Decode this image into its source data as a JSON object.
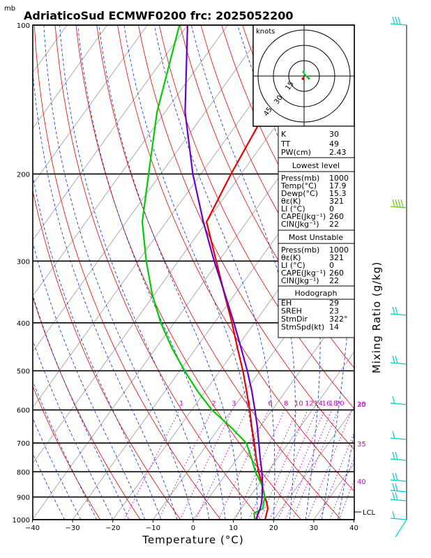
{
  "title": "AdriaticoSud ECMWF0200 frc: 2025052200",
  "p_unit": "mb",
  "colors": {
    "temperature": "#e60000",
    "dewpoint": "#00cc00",
    "virtual_temp": "#6a00cc",
    "dry_adiabats": "#e60000",
    "moist_adiabats": "#0033cc",
    "mixing_ratio": "#cc00cc",
    "wind_barbs": "#00cccc",
    "isotherms": "#999999"
  },
  "hodograph": {
    "units_label": "knots",
    "ring_labels": [
      "15",
      "30",
      "45"
    ]
  },
  "indices": {
    "general": [
      {
        "label": "K",
        "value": "30"
      },
      {
        "label": "TT",
        "value": "49"
      },
      {
        "label": "PW(cm)",
        "value": "2.43"
      }
    ],
    "lowest_level": {
      "header": "Lowest level",
      "rows": [
        {
          "label": "Press(mb)",
          "value": "1000"
        },
        {
          "label": "Temp(°C)",
          "value": "17.9"
        },
        {
          "label": "Dewp(°C)",
          "value": "15.3"
        },
        {
          "label": "θε(K)",
          "value": "321"
        },
        {
          "label": "LI (°C)",
          "value": "0"
        },
        {
          "label": "CAPE(Jkg⁻¹)",
          "value": "260"
        },
        {
          "label": "CIN(Jkg⁻¹)",
          "value": "22"
        }
      ]
    },
    "most_unstable": {
      "header": "Most Unstable",
      "rows": [
        {
          "label": "Press(mb)",
          "value": "1000"
        },
        {
          "label": "θε(K)",
          "value": "321"
        },
        {
          "label": "LI (°C)",
          "value": "0"
        },
        {
          "label": "CAPE(Jkg⁻¹)",
          "value": "260"
        },
        {
          "label": "CIN(Jkg⁻¹)",
          "value": "22"
        }
      ]
    },
    "hodograph": {
      "header": "Hodograph",
      "rows": [
        {
          "label": "EH",
          "value": "29"
        },
        {
          "label": "SREH",
          "value": "23"
        },
        {
          "label": "StmDir",
          "value": "322°"
        },
        {
          "label": "StmSpd(kt)",
          "value": "14"
        }
      ]
    }
  },
  "chart_data": {
    "type": "line",
    "subtype": "skew-T log-P sounding",
    "xlabel": "Temperature (°C)",
    "ylabel": "",
    "right_label": "Mixing Ratio (g/kg)",
    "x_ticks": [
      "−40",
      "−30",
      "−20",
      "−10",
      "0",
      "10",
      "20",
      "30",
      "40"
    ],
    "xlim": [
      -40,
      40
    ],
    "y_ticks": [
      "100",
      "200",
      "300",
      "400",
      "500",
      "600",
      "700",
      "800",
      "900",
      "1000"
    ],
    "ylim_hpa": [
      1000,
      100
    ],
    "y_scale": "log",
    "mixing_ratio_labels": [
      "1",
      "2",
      "3",
      "4",
      "6",
      "8",
      "10",
      "12",
      "14",
      "16",
      "18",
      "20",
      "25",
      "30",
      "35",
      "40"
    ],
    "lcl_label": "LCL",
    "lcl_pressure_hpa": 965,
    "series": [
      {
        "key": "temperature",
        "pressure_hpa": [
          1000,
          950,
          925,
          900,
          850,
          800,
          750,
          700,
          650,
          600,
          550,
          500,
          450,
          400,
          350,
          300,
          250,
          200,
          150,
          100
        ],
        "temp_c": [
          17.9,
          16.6,
          15.3,
          13.8,
          10.9,
          7.7,
          4.6,
          1.5,
          -2.0,
          -5.6,
          -9.7,
          -14.3,
          -19.7,
          -25.6,
          -32.6,
          -40.6,
          -50.0,
          -52.5,
          -55.0,
          -58.0
        ]
      },
      {
        "key": "dewpoint",
        "pressure_hpa": [
          1000,
          970,
          950,
          925,
          900,
          850,
          800,
          750,
          700,
          650,
          600,
          550,
          500,
          450,
          400,
          350,
          300,
          250,
          200,
          150,
          100
        ],
        "temp_c": [
          15.3,
          14.0,
          15.4,
          14.5,
          13.8,
          10.8,
          6.9,
          3.4,
          -0.5,
          -7.2,
          -15.0,
          -21.9,
          -28.8,
          -36.0,
          -43.3,
          -50.6,
          -58.0,
          -66.0,
          -73.0,
          -82.0,
          -92.0
        ]
      },
      {
        "key": "virtual_temp",
        "pressure_hpa": [
          1000,
          950,
          925,
          900,
          850,
          800,
          750,
          700,
          650,
          600,
          550,
          500,
          450,
          400,
          350,
          300,
          250,
          200,
          150,
          100
        ],
        "temp_c": [
          15.6,
          14.7,
          14.0,
          13.1,
          11.0,
          8.5,
          5.6,
          2.6,
          -0.6,
          -4.3,
          -8.4,
          -13.2,
          -18.8,
          -25.1,
          -32.5,
          -41.1,
          -50.8,
          -62.0,
          -75.0,
          -90.0
        ]
      }
    ],
    "hodograph_points_kt": [
      {
        "u": -2,
        "v": 12
      },
      {
        "u": 2,
        "v": 4
      },
      {
        "u": 10,
        "v": -3
      },
      {
        "u": 14,
        "v": -7
      }
    ],
    "storm_motion_kt": {
      "u": -3,
      "v": -8
    }
  }
}
